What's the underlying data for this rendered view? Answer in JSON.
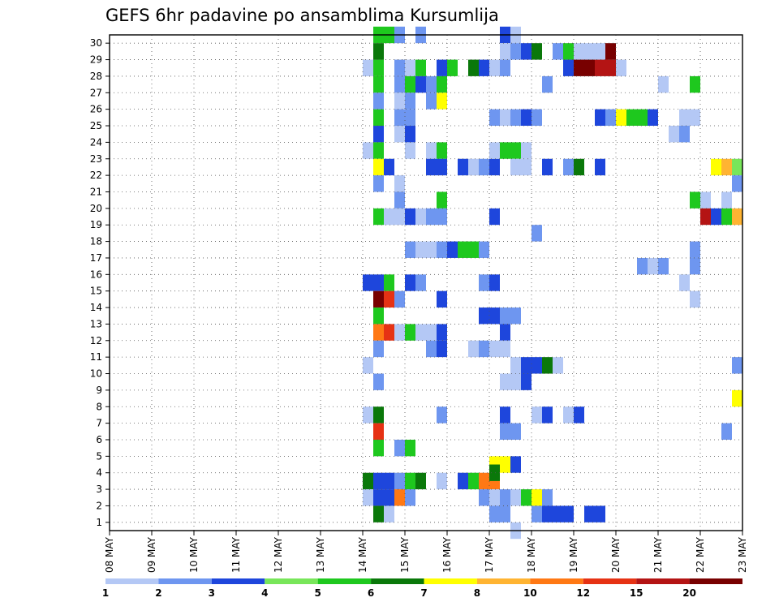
{
  "chart_data": {
    "type": "heatmap",
    "title": "GEFS 6hr padavine po ansamblima Kursumlija",
    "xlabel": "",
    "ylabel": "",
    "x_ticks": [
      "08 MAY",
      "09 MAY",
      "10 MAY",
      "11 MAY",
      "12 MAY",
      "13 MAY",
      "14 MAY",
      "15 MAY",
      "16 MAY",
      "17 MAY",
      "18 MAY",
      "19 MAY",
      "20 MAY",
      "21 MAY",
      "22 MAY",
      "23 MAY"
    ],
    "y_ticks": [
      "1",
      "2",
      "3",
      "4",
      "5",
      "6",
      "7",
      "8",
      "9",
      "10",
      "11",
      "12",
      "13",
      "14",
      "15",
      "16",
      "17",
      "18",
      "19",
      "20",
      "21",
      "22",
      "23",
      "24",
      "25",
      "26",
      "27",
      "28",
      "29",
      "30"
    ],
    "xlim": [
      0,
      60
    ],
    "ylim": [
      0,
      30
    ],
    "grid": true,
    "colorbar": {
      "labels": [
        "1",
        "2",
        "3",
        "4",
        "5",
        "6",
        "7",
        "8",
        "10",
        "12",
        "15",
        "20"
      ],
      "colors": [
        "#b4c8f5",
        "#6e96f0",
        "#1e46dc",
        "#78e65a",
        "#1ec81e",
        "#0a780a",
        "#ffff00",
        "#ffb432",
        "#ff7814",
        "#e63214",
        "#b41414",
        "#780000"
      ]
    },
    "cells": [
      [
        9,
        30,
        5
      ],
      [
        10,
        30,
        5
      ],
      [
        11,
        30,
        2
      ],
      [
        13,
        30,
        2
      ],
      [
        21,
        30,
        3
      ],
      [
        22,
        30,
        1
      ],
      [
        9,
        29,
        6
      ],
      [
        21,
        29,
        1
      ],
      [
        22,
        29,
        2
      ],
      [
        23,
        29,
        3
      ],
      [
        24,
        29,
        6
      ],
      [
        28,
        29,
        1
      ],
      [
        29,
        29,
        1
      ],
      [
        30,
        29,
        1
      ],
      [
        31,
        29,
        12
      ],
      [
        8,
        28,
        1
      ],
      [
        9,
        28,
        5
      ],
      [
        11,
        28,
        2
      ],
      [
        12,
        28,
        1
      ],
      [
        13,
        28,
        5
      ],
      [
        15,
        28,
        3
      ],
      [
        16,
        28,
        5
      ],
      [
        18,
        28,
        6
      ],
      [
        19,
        28,
        3
      ],
      [
        20,
        28,
        1
      ],
      [
        21,
        28,
        2
      ],
      [
        9,
        27,
        5
      ],
      [
        11,
        27,
        2
      ],
      [
        12,
        27,
        5
      ],
      [
        13,
        27,
        3
      ],
      [
        14,
        27,
        2
      ],
      [
        15,
        27,
        5
      ],
      [
        9,
        26,
        2
      ],
      [
        11,
        26,
        1
      ],
      [
        12,
        26,
        2
      ],
      [
        14,
        26,
        2
      ],
      [
        15,
        26,
        7
      ],
      [
        9,
        25,
        5
      ],
      [
        11,
        25,
        2
      ],
      [
        12,
        25,
        2
      ],
      [
        20,
        25,
        2
      ],
      [
        21,
        25,
        1
      ],
      [
        22,
        25,
        2
      ],
      [
        23,
        25,
        3
      ],
      [
        24,
        25,
        2
      ],
      [
        9,
        24,
        3
      ],
      [
        11,
        24,
        1
      ],
      [
        12,
        24,
        3
      ],
      [
        8,
        23,
        1
      ],
      [
        9,
        23,
        5
      ],
      [
        12,
        23,
        1
      ],
      [
        14,
        23,
        1
      ],
      [
        15,
        23,
        5
      ],
      [
        9,
        22,
        7
      ],
      [
        10,
        22,
        3
      ],
      [
        14,
        22,
        3
      ],
      [
        15,
        22,
        3
      ],
      [
        17,
        22,
        3
      ],
      [
        18,
        22,
        1
      ],
      [
        19,
        22,
        2
      ],
      [
        20,
        22,
        3
      ],
      [
        9,
        21,
        2
      ],
      [
        11,
        21,
        1
      ],
      [
        11,
        20,
        2
      ],
      [
        15,
        20,
        5
      ],
      [
        9,
        19,
        5
      ],
      [
        10,
        19,
        1
      ],
      [
        11,
        19,
        1
      ],
      [
        12,
        19,
        3
      ],
      [
        13,
        19,
        1
      ],
      [
        14,
        19,
        2
      ],
      [
        15,
        19,
        2
      ],
      [
        20,
        19,
        3
      ],
      [
        12,
        17,
        2
      ],
      [
        13,
        17,
        1
      ],
      [
        14,
        17,
        1
      ],
      [
        15,
        17,
        2
      ],
      [
        16,
        17,
        3
      ],
      [
        17,
        17,
        5
      ],
      [
        18,
        17,
        5
      ],
      [
        19,
        17,
        2
      ],
      [
        8,
        15,
        3
      ],
      [
        9,
        15,
        3
      ],
      [
        10,
        15,
        5
      ],
      [
        12,
        15,
        3
      ],
      [
        13,
        15,
        2
      ],
      [
        19,
        15,
        2
      ],
      [
        20,
        15,
        3
      ],
      [
        9,
        14,
        12
      ],
      [
        10,
        14,
        10
      ],
      [
        11,
        14,
        2
      ],
      [
        15,
        14,
        3
      ],
      [
        9,
        13,
        5
      ],
      [
        20,
        13,
        3
      ],
      [
        21,
        13,
        2
      ],
      [
        22,
        13,
        2
      ],
      [
        9,
        12,
        9
      ],
      [
        10,
        12,
        10
      ],
      [
        11,
        12,
        1
      ],
      [
        12,
        12,
        5
      ],
      [
        13,
        12,
        1
      ],
      [
        14,
        12,
        1
      ],
      [
        15,
        12,
        3
      ],
      [
        21,
        12,
        3
      ],
      [
        9,
        11,
        2
      ],
      [
        14,
        11,
        2
      ],
      [
        15,
        11,
        3
      ],
      [
        18,
        11,
        1
      ],
      [
        19,
        11,
        2
      ],
      [
        20,
        11,
        1
      ],
      [
        21,
        11,
        1
      ],
      [
        8,
        10,
        1
      ],
      [
        22,
        10,
        1
      ],
      [
        23,
        10,
        3
      ],
      [
        9,
        9,
        2
      ],
      [
        8,
        7,
        1
      ],
      [
        9,
        7,
        6
      ],
      [
        15,
        7,
        2
      ],
      [
        9,
        6,
        10
      ],
      [
        9,
        5,
        5
      ],
      [
        11,
        5,
        2
      ],
      [
        12,
        5,
        5
      ],
      [
        8,
        3,
        6
      ],
      [
        9,
        3,
        3
      ],
      [
        10,
        3,
        3
      ],
      [
        11,
        3,
        2
      ],
      [
        12,
        3,
        5
      ],
      [
        13,
        3,
        6
      ],
      [
        15,
        3,
        1
      ],
      [
        17,
        3,
        3
      ],
      [
        18,
        3,
        5
      ],
      [
        19,
        3,
        9
      ],
      [
        20,
        3,
        9
      ],
      [
        8,
        2,
        1
      ],
      [
        9,
        2,
        3
      ],
      [
        10,
        2,
        3
      ],
      [
        11,
        2,
        9
      ],
      [
        12,
        2,
        2
      ],
      [
        19,
        2,
        2
      ],
      [
        20,
        2,
        1
      ],
      [
        9,
        1,
        6
      ],
      [
        10,
        1,
        1
      ],
      [
        20,
        4,
        7
      ],
      [
        21,
        4,
        7
      ],
      [
        22,
        4,
        3
      ],
      [
        20,
        3.5,
        6
      ],
      [
        21,
        2,
        2
      ],
      [
        22,
        2,
        1
      ],
      [
        23,
        2,
        5
      ],
      [
        24,
        2,
        7
      ],
      [
        25,
        2,
        2
      ],
      [
        26,
        29,
        2
      ],
      [
        27,
        29,
        5
      ],
      [
        27,
        28,
        3
      ],
      [
        28,
        28,
        12
      ],
      [
        29,
        28,
        12
      ],
      [
        30,
        28,
        11
      ],
      [
        31,
        28,
        11
      ],
      [
        32,
        28,
        1
      ],
      [
        25,
        27,
        2
      ],
      [
        36,
        27,
        1
      ],
      [
        39,
        27,
        5
      ],
      [
        30,
        25,
        3
      ],
      [
        31,
        25,
        2
      ],
      [
        32,
        25,
        7
      ],
      [
        33,
        25,
        5
      ],
      [
        34,
        25,
        5
      ],
      [
        35,
        25,
        3
      ],
      [
        38,
        25,
        1
      ],
      [
        39,
        25,
        1
      ],
      [
        44,
        25,
        3
      ],
      [
        37,
        24,
        1
      ],
      [
        38,
        24,
        2
      ],
      [
        20,
        23,
        1
      ],
      [
        21,
        23,
        5
      ],
      [
        22,
        23,
        5
      ],
      [
        23,
        23,
        1
      ],
      [
        22,
        22,
        1
      ],
      [
        23,
        22,
        1
      ],
      [
        25,
        22,
        3
      ],
      [
        27,
        22,
        2
      ],
      [
        28,
        22,
        6
      ],
      [
        30,
        22,
        3
      ],
      [
        41,
        22,
        7
      ],
      [
        42,
        22,
        8
      ],
      [
        43,
        22,
        4
      ],
      [
        44,
        21,
        2
      ],
      [
        43,
        21,
        2
      ],
      [
        39,
        20,
        5
      ],
      [
        40,
        20,
        1
      ],
      [
        42,
        20,
        1
      ],
      [
        40,
        19,
        11
      ],
      [
        41,
        19,
        3
      ],
      [
        42,
        19,
        5
      ],
      [
        43,
        19,
        8
      ],
      [
        44,
        19,
        1
      ],
      [
        24,
        18,
        2
      ],
      [
        34,
        16,
        2
      ],
      [
        35,
        16,
        1
      ],
      [
        36,
        16,
        2
      ],
      [
        39,
        16,
        2
      ],
      [
        39,
        17,
        2
      ],
      [
        38,
        15,
        1
      ],
      [
        44,
        15,
        6
      ],
      [
        39,
        14,
        1
      ],
      [
        44,
        13,
        1
      ],
      [
        19,
        13,
        3
      ],
      [
        24,
        10,
        3
      ],
      [
        25,
        10,
        6
      ],
      [
        26,
        10,
        1
      ],
      [
        43,
        10,
        2
      ],
      [
        44,
        10,
        5
      ],
      [
        21,
        9,
        1
      ],
      [
        22,
        9,
        1
      ],
      [
        23,
        9,
        3
      ],
      [
        44,
        9,
        3
      ],
      [
        43,
        8,
        7
      ],
      [
        44,
        8,
        3
      ],
      [
        21,
        7,
        3
      ],
      [
        24,
        7,
        1
      ],
      [
        25,
        7,
        3
      ],
      [
        27,
        7,
        1
      ],
      [
        28,
        7,
        3
      ],
      [
        21,
        6,
        2
      ],
      [
        22,
        6,
        2
      ],
      [
        42,
        6,
        2
      ],
      [
        44,
        5,
        2
      ],
      [
        44,
        4,
        1
      ],
      [
        24,
        1,
        2
      ],
      [
        25,
        1,
        3
      ],
      [
        26,
        1,
        3
      ],
      [
        27,
        1,
        3
      ],
      [
        29,
        1,
        3
      ],
      [
        30,
        1,
        3
      ],
      [
        20,
        1,
        2
      ],
      [
        21,
        1,
        2
      ],
      [
        22,
        0,
        1
      ]
    ]
  }
}
